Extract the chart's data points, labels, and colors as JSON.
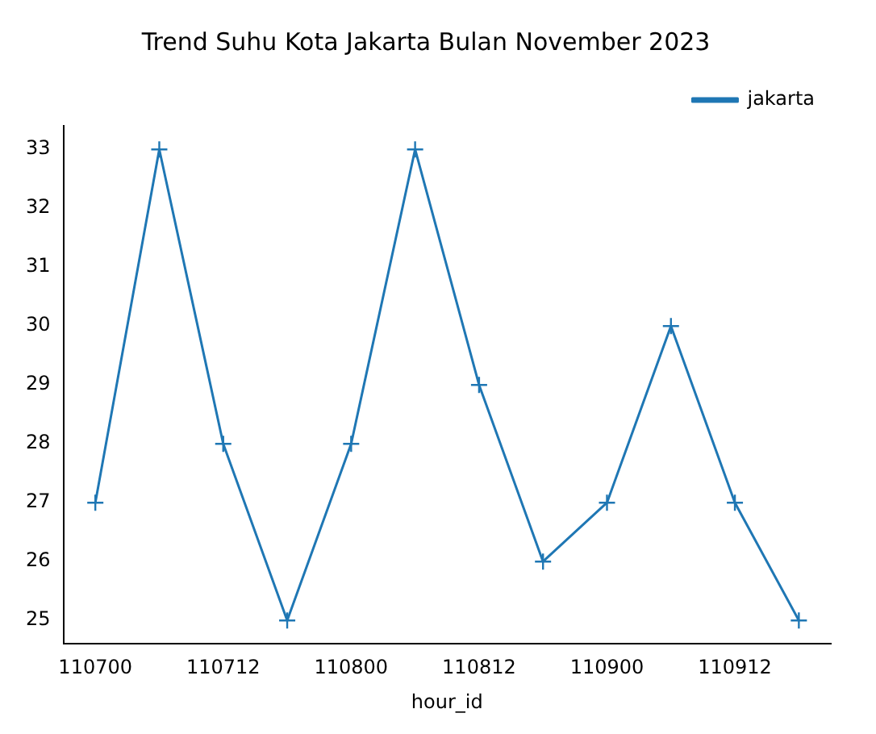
{
  "chart_data": {
    "type": "line",
    "title": "Trend Suhu Kota Jakarta Bulan November 2023",
    "xlabel": "hour_id",
    "categories": [
      "110700",
      null,
      "110712",
      null,
      "110800",
      null,
      "110812",
      null,
      "110900",
      null,
      "110912",
      null
    ],
    "series": [
      {
        "name": "jakarta",
        "color": "#1f77b4",
        "values": [
          27,
          33,
          28,
          25,
          28,
          33,
          29,
          26,
          27,
          30,
          27,
          25
        ]
      }
    ],
    "ylim": [
      24.6,
      33.4
    ],
    "yticks": [
      25,
      26,
      27,
      28,
      29,
      30,
      31,
      32,
      33
    ],
    "grid": false,
    "legend": "top right",
    "marker": "cross",
    "line_style": "solid"
  }
}
